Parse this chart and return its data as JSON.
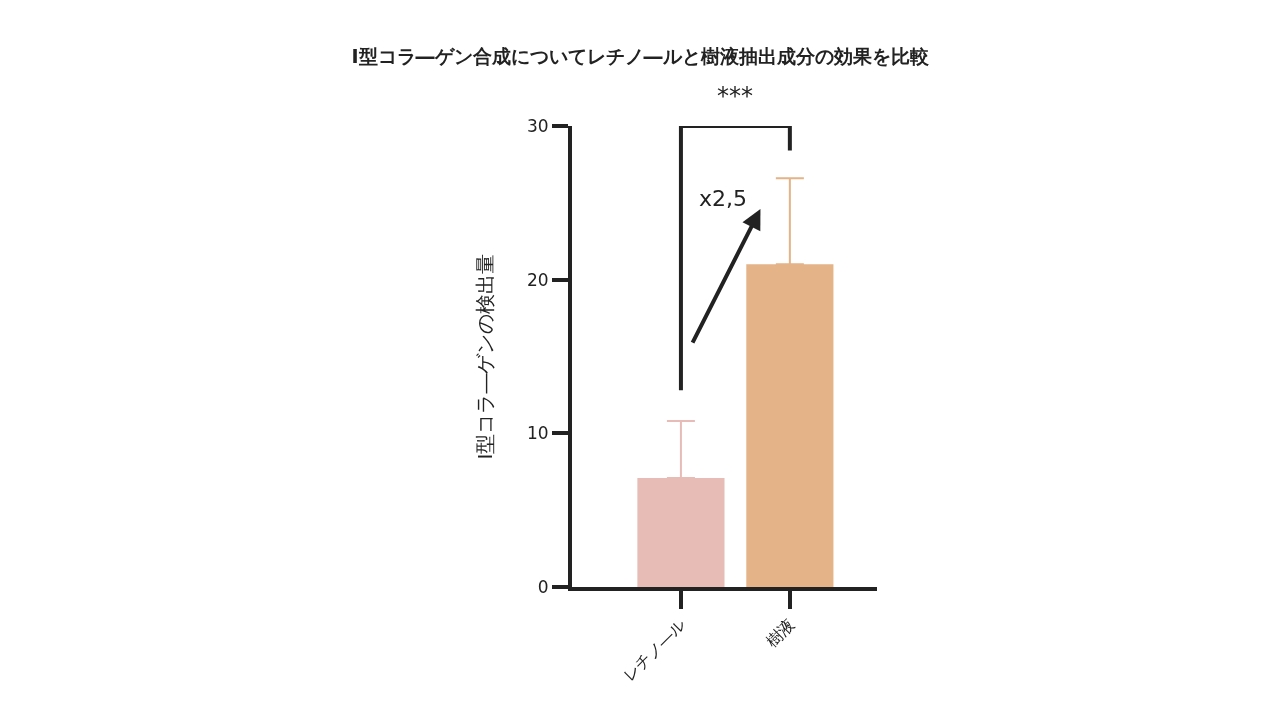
{
  "chart_data": {
    "type": "bar",
    "title": "I型コラ―ゲン合成についてレチノ―ルと樹液抽出成分の効果を比較",
    "ylabel": "I型コラ―ゲンの検出量",
    "categories": [
      "レチノ―ル",
      "樹液"
    ],
    "values": [
      7.1,
      21.0
    ],
    "colors": [
      "#e8bcb6",
      "#e4b388"
    ],
    "errors": [
      [
        7.1,
        10.8
      ],
      [
        21.0,
        26.6
      ]
    ],
    "ylim": [
      0,
      30
    ],
    "yticks": [
      0,
      10,
      20,
      30
    ],
    "grid": false,
    "annotations": [
      "***",
      "x2,5"
    ]
  }
}
